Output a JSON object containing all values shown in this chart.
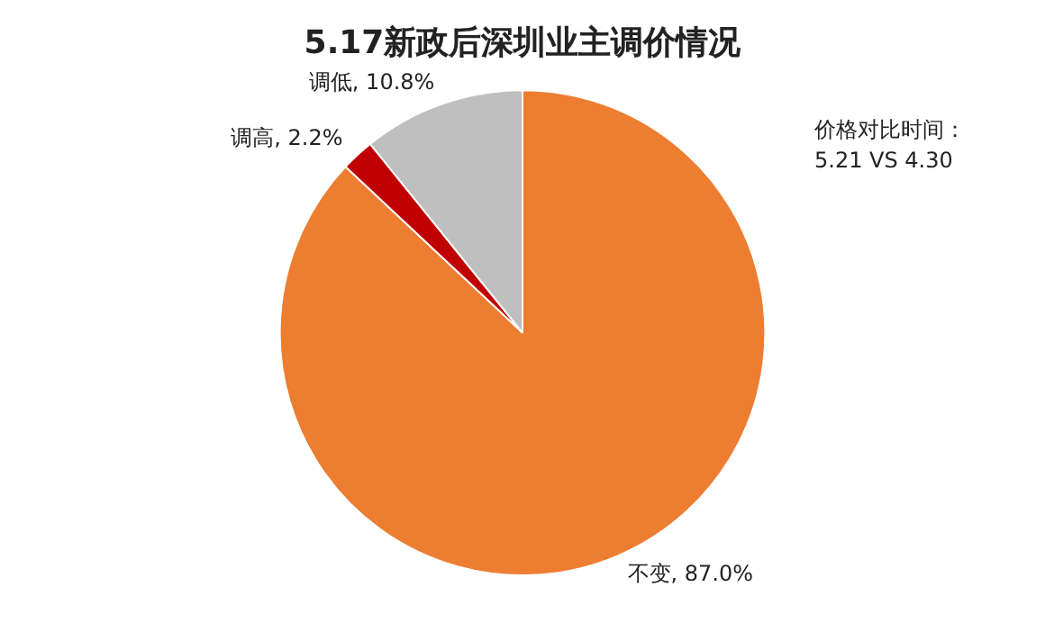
{
  "chart_data": {
    "type": "pie",
    "title": "5.17新政后深圳业主调价情况",
    "categories": [
      "不变",
      "调高",
      "调低"
    ],
    "values": [
      87.0,
      2.2,
      10.8
    ],
    "colors": [
      "#ed7d31",
      "#c00000",
      "#bfbfbf"
    ],
    "value_labels": [
      "87.0%",
      "2.2%",
      "10.8%"
    ],
    "annotations": [
      "价格对比时间：\n5.21 VS 4.30"
    ],
    "legend": false
  }
}
